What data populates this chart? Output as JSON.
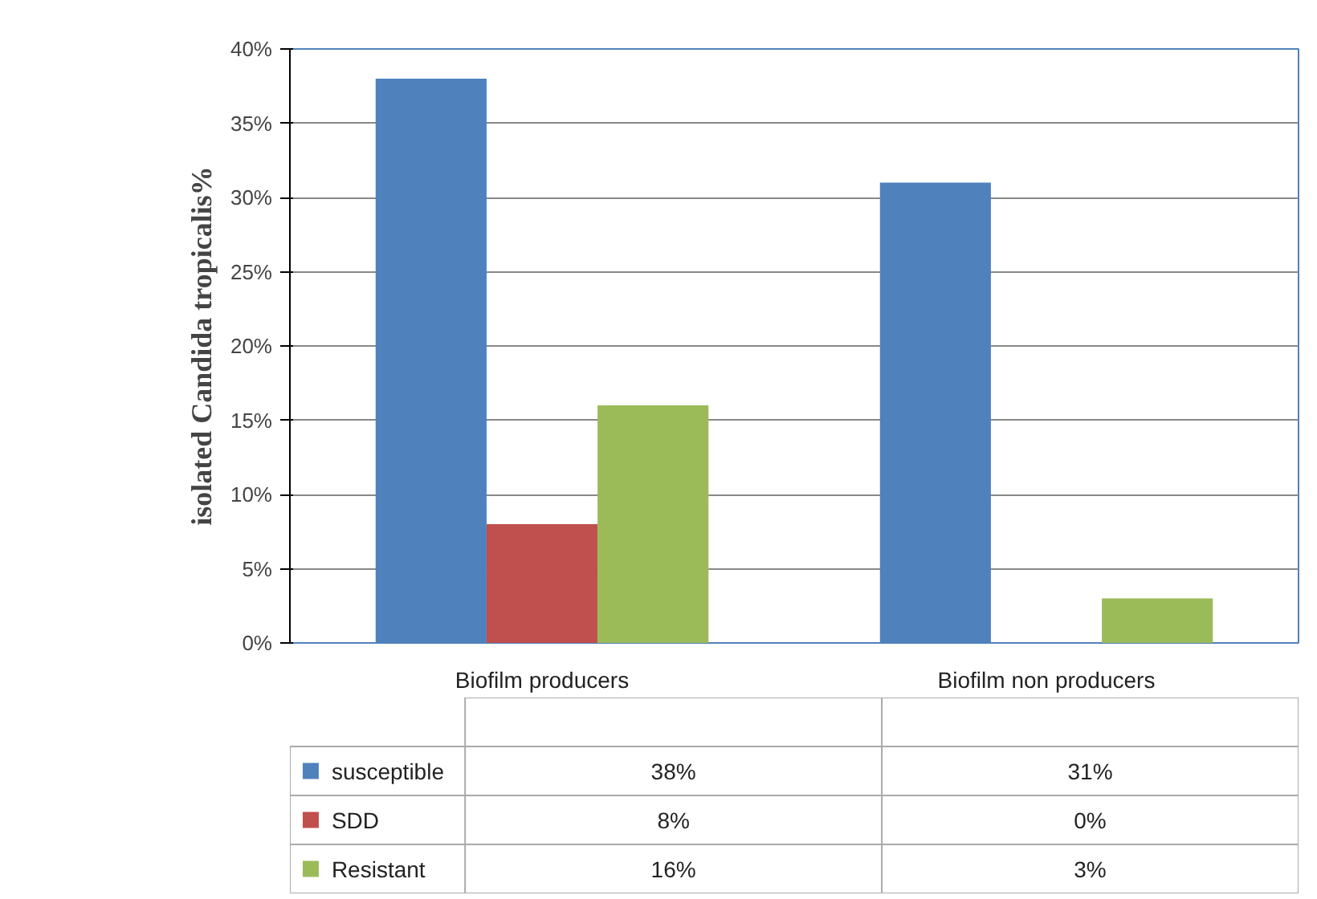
{
  "chart_data": {
    "type": "bar",
    "ylabel": "isolated Candida tropicalis%",
    "categories": [
      "Biofilm producers",
      "Biofilm non producers"
    ],
    "series": [
      {
        "name": "susceptible",
        "color": "#4f81bd",
        "values": [
          38,
          31
        ],
        "value_labels": [
          "38%",
          "31%"
        ]
      },
      {
        "name": "SDD",
        "color": "#c0504d",
        "values": [
          8,
          0
        ],
        "value_labels": [
          "8%",
          "0%"
        ]
      },
      {
        "name": "Resistant",
        "color": "#9bbb59",
        "values": [
          16,
          3
        ],
        "value_labels": [
          "16%",
          "3%"
        ]
      }
    ],
    "ylim": [
      0,
      40
    ],
    "yticks": [
      {
        "value": 0,
        "label": "0%"
      },
      {
        "value": 5,
        "label": "5%"
      },
      {
        "value": 10,
        "label": "10%"
      },
      {
        "value": 15,
        "label": "15%"
      },
      {
        "value": 20,
        "label": "20%"
      },
      {
        "value": 25,
        "label": "25%"
      },
      {
        "value": 30,
        "label": "30%"
      },
      {
        "value": 35,
        "label": "35%"
      },
      {
        "value": 40,
        "label": "40%"
      }
    ],
    "grid": "y",
    "legend": "bottom"
  }
}
